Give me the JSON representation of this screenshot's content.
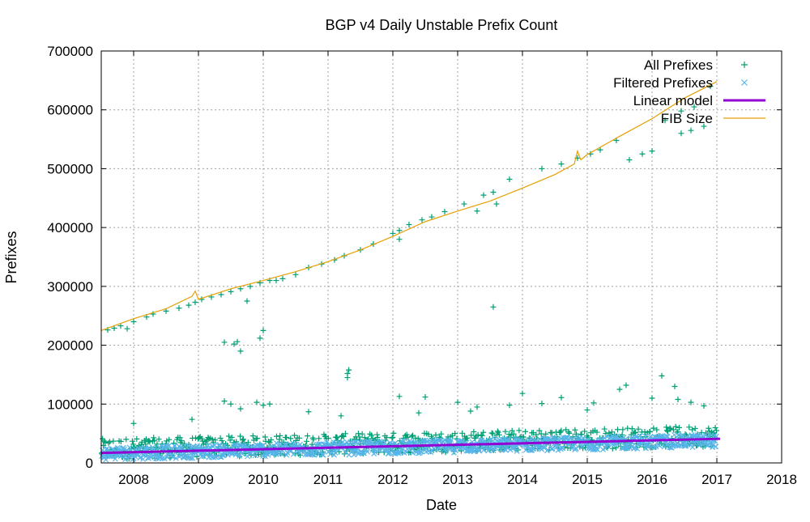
{
  "chart_data": {
    "type": "scatter",
    "title": "BGP v4 Daily Unstable Prefix Count",
    "xlabel": "Date",
    "ylabel": "Prefixes",
    "xlim": [
      2007.5,
      2018
    ],
    "ylim": [
      0,
      700000
    ],
    "x_ticks": [
      "2008",
      "2009",
      "2010",
      "2011",
      "2012",
      "2013",
      "2014",
      "2015",
      "2016",
      "2017",
      "2018"
    ],
    "y_ticks": [
      "0",
      "100000",
      "200000",
      "300000",
      "400000",
      "500000",
      "600000",
      "700000"
    ],
    "grid": true,
    "legend_position": "top-right",
    "series": [
      {
        "name": "All Prefixes",
        "kind": "plus-markers",
        "color": "#009e73",
        "baseline": {
          "x": [
            2007.5,
            2017.0
          ],
          "y": [
            20000,
            42000
          ],
          "spread": 22000
        },
        "outliers": [
          [
            2007.6,
            226000
          ],
          [
            2007.7,
            229000
          ],
          [
            2007.8,
            233000
          ],
          [
            2007.9,
            228000
          ],
          [
            2008.0,
            240000
          ],
          [
            2008.2,
            248000
          ],
          [
            2008.3,
            253000
          ],
          [
            2008.5,
            258000
          ],
          [
            2008.7,
            263000
          ],
          [
            2008.85,
            268000
          ],
          [
            2008.95,
            273000
          ],
          [
            2009.05,
            278000
          ],
          [
            2009.2,
            282000
          ],
          [
            2009.35,
            286000
          ],
          [
            2009.5,
            291000
          ],
          [
            2009.65,
            296000
          ],
          [
            2009.8,
            300000
          ],
          [
            2009.95,
            306000
          ],
          [
            2010.1,
            310000
          ],
          [
            2010.3,
            313000
          ],
          [
            2010.5,
            320000
          ],
          [
            2010.7,
            332000
          ],
          [
            2010.9,
            338000
          ],
          [
            2011.1,
            345000
          ],
          [
            2011.25,
            352000
          ],
          [
            2011.5,
            362000
          ],
          [
            2011.7,
            372000
          ],
          [
            2012.0,
            390000
          ],
          [
            2012.1,
            395000
          ],
          [
            2012.25,
            405000
          ],
          [
            2012.45,
            413000
          ],
          [
            2012.6,
            418000
          ],
          [
            2012.8,
            427000
          ],
          [
            2013.1,
            440000
          ],
          [
            2013.4,
            455000
          ],
          [
            2013.55,
            460000
          ],
          [
            2013.8,
            482000
          ],
          [
            2014.6,
            508000
          ],
          [
            2014.85,
            518000
          ],
          [
            2015.05,
            525000
          ],
          [
            2015.2,
            532000
          ],
          [
            2015.45,
            548000
          ],
          [
            2015.65,
            515000
          ],
          [
            2015.85,
            525000
          ],
          [
            2016.0,
            530000
          ],
          [
            2016.2,
            582000
          ],
          [
            2016.45,
            598000
          ],
          [
            2016.65,
            605000
          ],
          [
            2016.6,
            565000
          ],
          [
            2016.8,
            572000
          ],
          [
            2016.9,
            640000
          ],
          [
            2009.4,
            205000
          ],
          [
            2009.55,
            202000
          ],
          [
            2009.6,
            206000
          ],
          [
            2009.65,
            190000
          ],
          [
            2009.95,
            212000
          ],
          [
            2010.0,
            225000
          ],
          [
            2009.75,
            275000
          ],
          [
            2010.2,
            310000
          ],
          [
            2011.3,
            145000
          ],
          [
            2011.3,
            152000
          ],
          [
            2011.32,
            158000
          ],
          [
            2012.1,
            380000
          ],
          [
            2013.55,
            265000
          ],
          [
            2013.6,
            440000
          ],
          [
            2013.3,
            428000
          ],
          [
            2014.3,
            500000
          ],
          [
            2016.45,
            560000
          ]
        ],
        "spikes": [
          [
            2009.4,
            105000
          ],
          [
            2009.5,
            100000
          ],
          [
            2009.65,
            92000
          ],
          [
            2009.9,
            103000
          ],
          [
            2010.0,
            98000
          ],
          [
            2010.1,
            100000
          ],
          [
            2012.1,
            113000
          ],
          [
            2012.5,
            112000
          ],
          [
            2013.0,
            103000
          ],
          [
            2013.3,
            95000
          ],
          [
            2013.8,
            98000
          ],
          [
            2014.0,
            118000
          ],
          [
            2014.3,
            101000
          ],
          [
            2014.6,
            111000
          ],
          [
            2015.1,
            102000
          ],
          [
            2015.5,
            125000
          ],
          [
            2015.6,
            132000
          ],
          [
            2016.0,
            110000
          ],
          [
            2016.15,
            148000
          ],
          [
            2016.35,
            130000
          ],
          [
            2016.4,
            108000
          ],
          [
            2016.6,
            103000
          ],
          [
            2016.8,
            97000
          ],
          [
            2008.0,
            67000
          ],
          [
            2008.9,
            74000
          ],
          [
            2010.7,
            87000
          ],
          [
            2011.2,
            80000
          ],
          [
            2012.4,
            85000
          ],
          [
            2013.2,
            88000
          ],
          [
            2015.0,
            90000
          ]
        ]
      },
      {
        "name": "Filtered Prefixes",
        "kind": "cross-markers",
        "color": "#56b4e9",
        "baseline": {
          "x": [
            2007.5,
            2017.0
          ],
          "y": [
            16000,
            38000
          ],
          "spread": 14000
        }
      },
      {
        "name": "Linear model",
        "kind": "line",
        "color": "#9400d3",
        "x": [
          2007.5,
          2017.05
        ],
        "y": [
          17000,
          41000
        ]
      },
      {
        "name": "FIB Size",
        "kind": "line",
        "color": "#e69f00",
        "x": [
          2007.5,
          2008.0,
          2008.5,
          2008.9,
          2008.95,
          2009.0,
          2009.5,
          2010.0,
          2010.5,
          2011.0,
          2011.5,
          2012.0,
          2012.5,
          2013.0,
          2013.5,
          2014.0,
          2014.5,
          2014.8,
          2014.85,
          2014.9,
          2015.0,
          2015.5,
          2016.0,
          2016.5,
          2017.0
        ],
        "y": [
          225000,
          245000,
          262000,
          283000,
          292000,
          278000,
          296000,
          310000,
          325000,
          342000,
          362000,
          385000,
          410000,
          428000,
          445000,
          467000,
          490000,
          508000,
          530000,
          515000,
          524000,
          555000,
          585000,
          620000,
          648000
        ]
      }
    ]
  }
}
